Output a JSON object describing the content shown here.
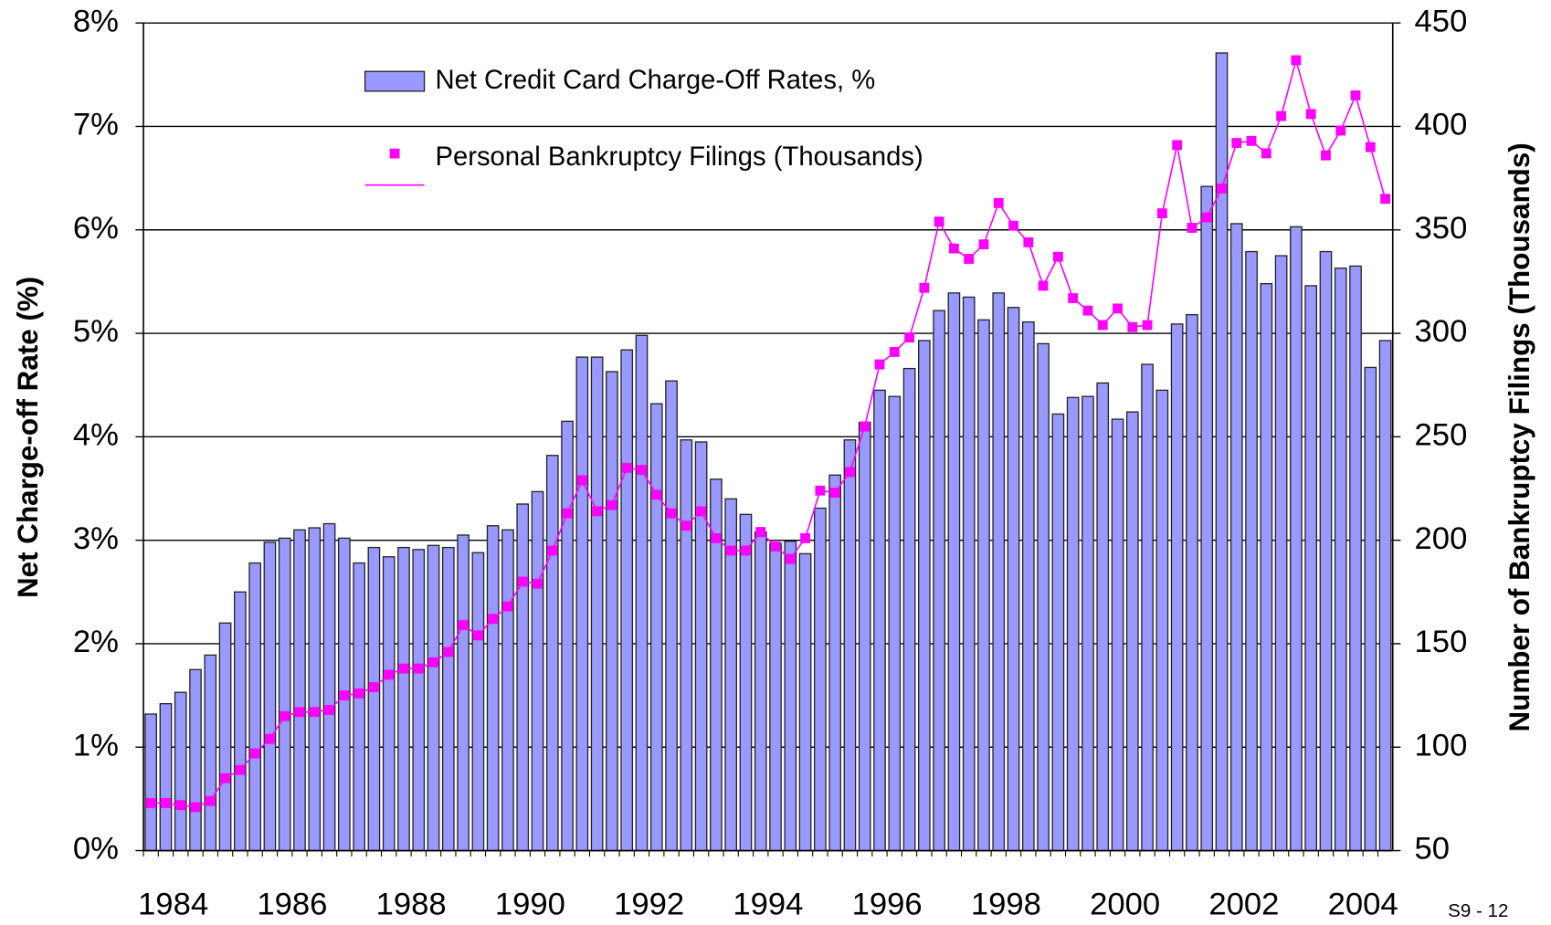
{
  "chart_data": {
    "type": "bar-line",
    "categories": [
      "1984",
      null,
      null,
      null,
      null,
      null,
      null,
      null,
      "1986",
      null,
      null,
      null,
      null,
      null,
      null,
      null,
      "1988",
      null,
      null,
      null,
      null,
      null,
      null,
      null,
      "1990",
      null,
      null,
      null,
      null,
      null,
      null,
      null,
      "1992",
      null,
      null,
      null,
      null,
      null,
      null,
      null,
      "1994",
      null,
      null,
      null,
      null,
      null,
      null,
      null,
      "1996",
      null,
      null,
      null,
      null,
      null,
      null,
      null,
      "1998",
      null,
      null,
      null,
      null,
      null,
      null,
      null,
      "2000",
      null,
      null,
      null,
      null,
      null,
      null,
      null,
      "2002",
      null,
      null,
      null,
      null,
      null,
      null,
      null,
      "2004",
      null,
      null,
      null
    ],
    "series": [
      {
        "name": "Net Credit Card Charge-Off Rates, %",
        "type": "bar",
        "axis": "y",
        "color": "#9999ff",
        "values": [
          1.32,
          1.42,
          1.53,
          1.75,
          1.89,
          2.2,
          2.5,
          2.78,
          2.98,
          3.02,
          3.1,
          3.12,
          3.16,
          3.02,
          2.78,
          2.93,
          2.84,
          2.93,
          2.91,
          2.95,
          2.93,
          3.05,
          2.88,
          3.14,
          3.1,
          3.35,
          3.47,
          3.82,
          4.15,
          4.77,
          4.77,
          4.63,
          4.84,
          4.98,
          4.32,
          4.54,
          3.97,
          3.95,
          3.59,
          3.4,
          3.25,
          3.08,
          2.97,
          2.99,
          2.87,
          3.31,
          3.63,
          3.97,
          4.14,
          4.45,
          4.39,
          4.66,
          4.93,
          5.22,
          5.39,
          5.35,
          5.13,
          5.39,
          5.25,
          5.11,
          4.9,
          4.22,
          4.38,
          4.39,
          4.52,
          4.17,
          4.24,
          4.7,
          4.45,
          5.09,
          5.18,
          6.42,
          7.71,
          6.06,
          5.79,
          5.48,
          5.75,
          6.03,
          5.46,
          5.79,
          5.63,
          5.65,
          4.67,
          4.93
        ]
      },
      {
        "name": "Personal Bankruptcy Filings (Thousands)",
        "type": "line",
        "axis": "y2",
        "color": "#ff00ff",
        "values": [
          73,
          73,
          72,
          71,
          74,
          85,
          89,
          97,
          104,
          115,
          117,
          117,
          118,
          125,
          126,
          129,
          135,
          138,
          138,
          141,
          146,
          159,
          154,
          162,
          168,
          180,
          179,
          195,
          213,
          229,
          214,
          217,
          235,
          234,
          222,
          213,
          207,
          214,
          201,
          195,
          195,
          204,
          197,
          191,
          201,
          224,
          223,
          233,
          255,
          285,
          291,
          298,
          322,
          354,
          341,
          336,
          343,
          363,
          352,
          344,
          323,
          337,
          317,
          311,
          304,
          312,
          303,
          304,
          358,
          391,
          351,
          356,
          370,
          392,
          393,
          387,
          405,
          432,
          406,
          386,
          398,
          415,
          390,
          365
        ]
      }
    ],
    "y_label": "Net Charge-off Rate (%)",
    "y2_label": "Number of Bankruptcy Filings (Thousands)",
    "ylim": [
      0,
      8
    ],
    "yticks": [
      {
        "value": 0,
        "label": "0%"
      },
      {
        "value": 1,
        "label": "1%"
      },
      {
        "value": 2,
        "label": "2%"
      },
      {
        "value": 3,
        "label": "3%"
      },
      {
        "value": 4,
        "label": "4%"
      },
      {
        "value": 5,
        "label": "5%"
      },
      {
        "value": 6,
        "label": "6%"
      },
      {
        "value": 7,
        "label": "7%"
      },
      {
        "value": 8,
        "label": "8%"
      }
    ],
    "y2lim": [
      50,
      450
    ],
    "y2ticks": [
      50,
      100,
      150,
      200,
      250,
      300,
      350,
      400,
      450
    ],
    "grid": true,
    "legend": "top",
    "footnote": "S9 - 12"
  }
}
